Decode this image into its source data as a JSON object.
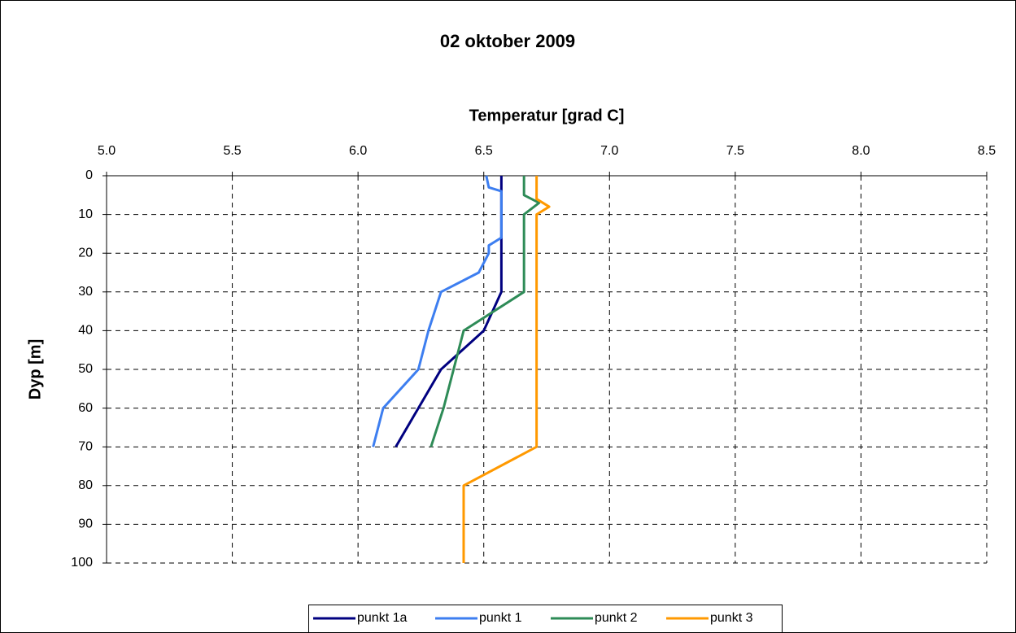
{
  "chart_data": {
    "type": "line",
    "title": "02 oktober 2009",
    "x_label": "Temperatur [grad C]",
    "y_label": "Dyp [m]",
    "xlim": [
      5,
      8.5
    ],
    "xticks": [
      {
        "value": 5,
        "label": "5.0"
      },
      {
        "value": 5.5,
        "label": "5.5"
      },
      {
        "value": 6,
        "label": "6.0"
      },
      {
        "value": 6.5,
        "label": "6.5"
      },
      {
        "value": 7,
        "label": "7.0"
      },
      {
        "value": 7.5,
        "label": "7.5"
      },
      {
        "value": 8,
        "label": "8.0"
      },
      {
        "value": 8.5,
        "label": "8.5"
      }
    ],
    "ylim": [
      0,
      100
    ],
    "yticks": [
      0,
      10,
      20,
      30,
      40,
      50,
      60,
      70,
      80,
      90,
      100
    ],
    "y_inverted": true,
    "grid": true,
    "legend": "bottom",
    "series": [
      {
        "name": "punkt 1a",
        "color": "#000080",
        "x": [
          6.57,
          6.57,
          6.5,
          6.33,
          6.24,
          6.15
        ],
        "y": [
          0,
          30,
          40,
          50,
          60,
          70
        ]
      },
      {
        "name": "punkt 1",
        "color": "#3d7ef0",
        "x": [
          6.51,
          6.52,
          6.57,
          6.57,
          6.52,
          6.52,
          6.48,
          6.33,
          6.28,
          6.24,
          6.1,
          6.06
        ],
        "y": [
          0,
          3,
          4,
          16,
          18,
          20,
          25,
          30,
          40,
          50,
          60,
          70
        ]
      },
      {
        "name": "punkt 2",
        "color": "#2e8b57",
        "x": [
          6.66,
          6.66,
          6.72,
          6.66,
          6.66,
          6.42,
          6.34,
          6.29
        ],
        "y": [
          0,
          5,
          7,
          10,
          30,
          40,
          60,
          70
        ]
      },
      {
        "name": "punkt 3",
        "color": "#ff9900",
        "x": [
          6.71,
          6.71,
          6.76,
          6.71,
          6.71,
          6.42,
          6.42
        ],
        "y": [
          0,
          6,
          8,
          10,
          70,
          80,
          100
        ]
      }
    ]
  }
}
